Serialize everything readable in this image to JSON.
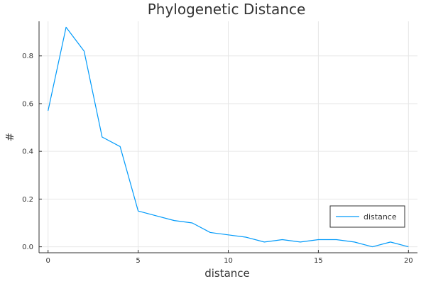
{
  "chart_data": {
    "type": "line",
    "title": "Phylogenetic Distance",
    "xlabel": "distance",
    "ylabel": "#",
    "xlim": [
      -0.5,
      20.5
    ],
    "ylim": [
      -0.025,
      0.945
    ],
    "xticks": [
      0,
      5,
      10,
      15,
      20
    ],
    "yticks": [
      0.0,
      0.2,
      0.4,
      0.6,
      0.8
    ],
    "grid": true,
    "legend_position": "bottom-right",
    "series": [
      {
        "name": "distance",
        "color": "#009AFA",
        "x": [
          0,
          1,
          2,
          3,
          4,
          5,
          6,
          7,
          8,
          9,
          10,
          11,
          12,
          13,
          14,
          15,
          16,
          17,
          18,
          19,
          20
        ],
        "y": [
          0.57,
          0.92,
          0.82,
          0.46,
          0.42,
          0.15,
          0.13,
          0.11,
          0.1,
          0.06,
          0.05,
          0.04,
          0.02,
          0.03,
          0.02,
          0.03,
          0.03,
          0.02,
          0.0,
          0.02,
          0.0
        ]
      }
    ]
  }
}
